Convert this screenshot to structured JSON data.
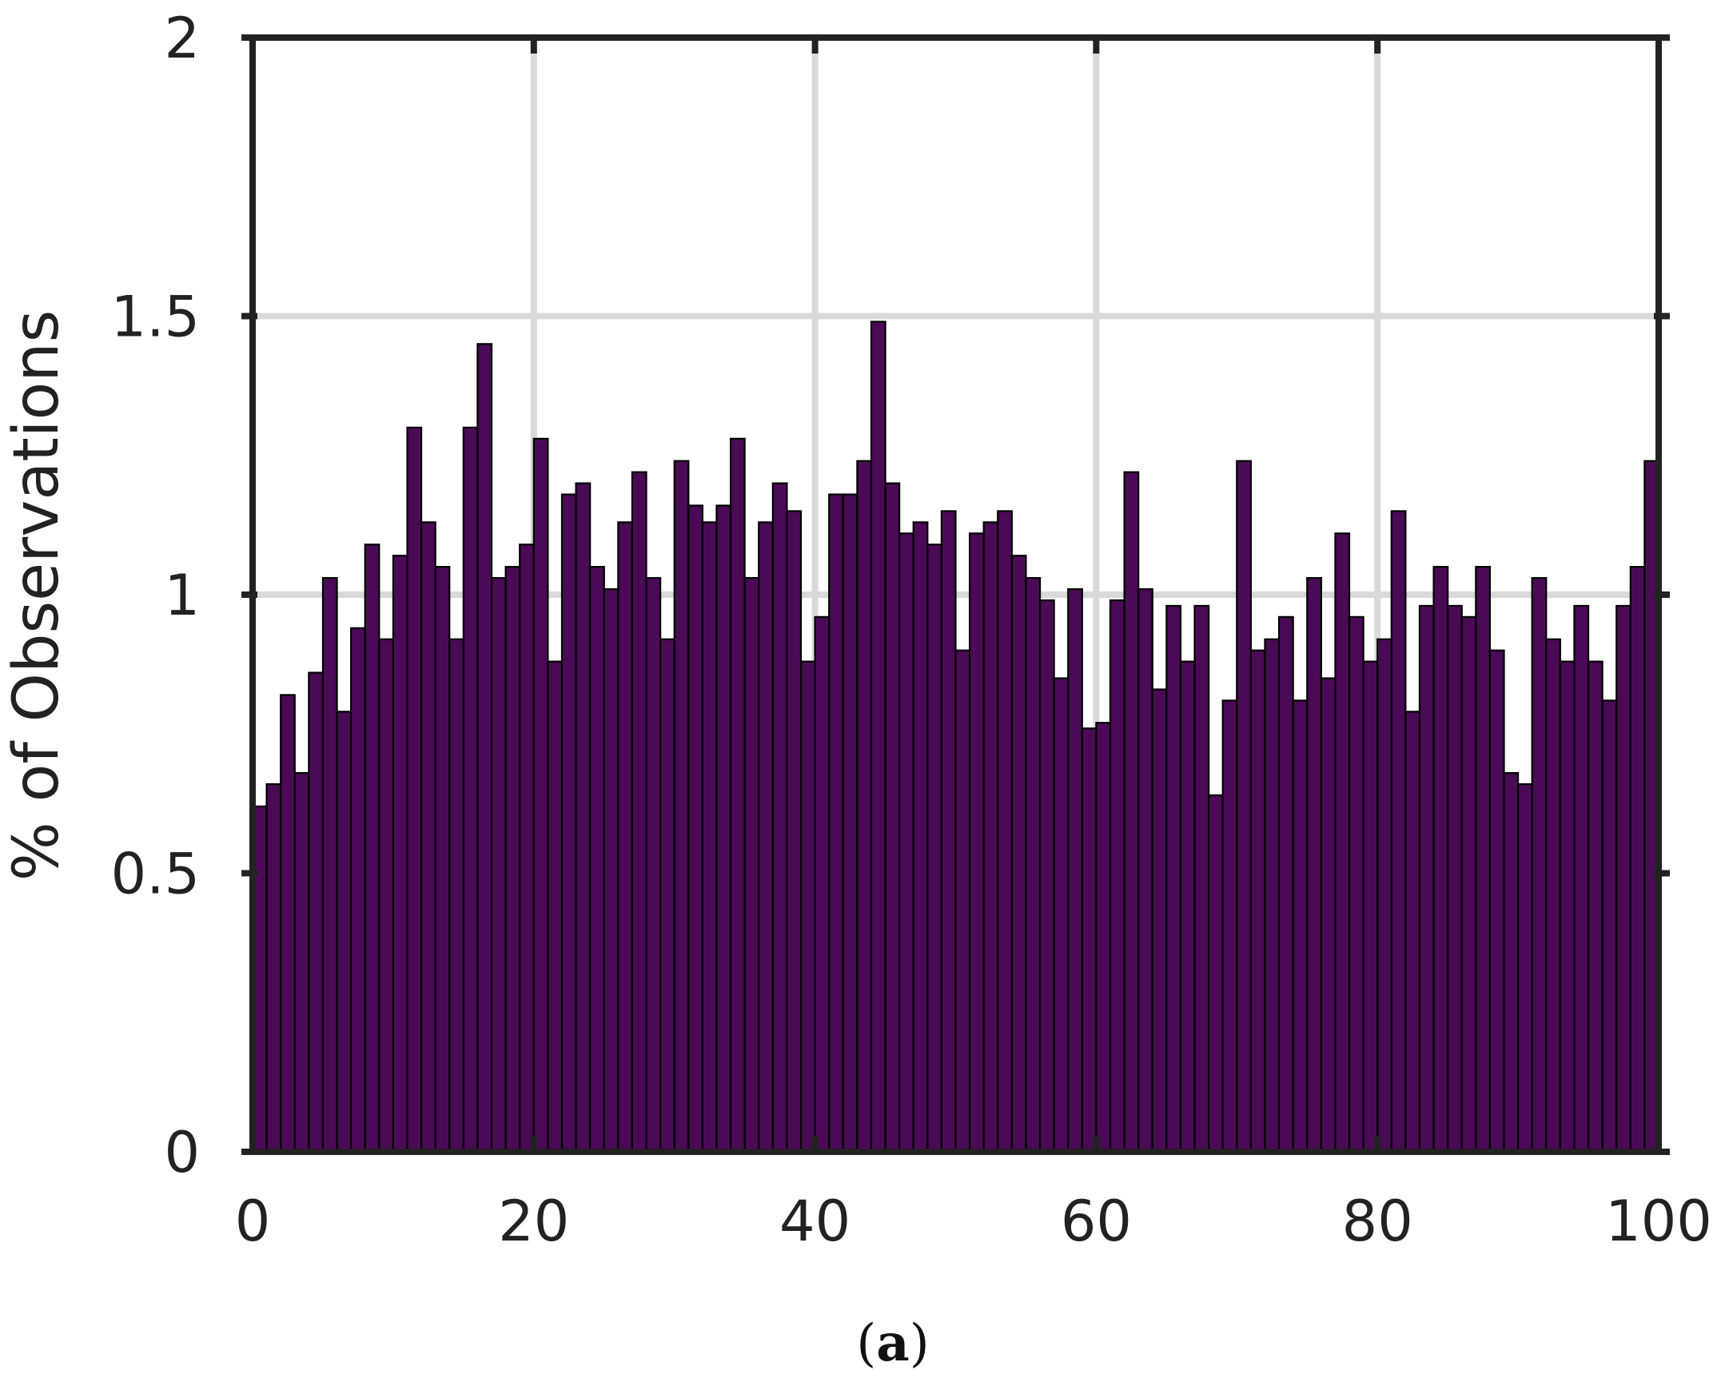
{
  "chart_data": {
    "type": "bar",
    "ylabel": "% of Observations",
    "caption": {
      "open": "(",
      "letter": "a",
      "close": ")"
    },
    "xlim": [
      0,
      100
    ],
    "ylim": [
      0,
      2
    ],
    "x_ticks": [
      "0",
      "20",
      "40",
      "60",
      "80",
      "100"
    ],
    "y_ticks": [
      "0",
      "0.5",
      "1",
      "1.5",
      "2"
    ],
    "grid": true,
    "bar_color": "#4a0a55",
    "bar_edge_color": "#000000",
    "grid_color": "#d9d9d9",
    "axis_color": "#222222",
    "values": [
      0.62,
      0.66,
      0.82,
      0.68,
      0.86,
      1.03,
      0.79,
      0.94,
      1.09,
      0.92,
      1.07,
      1.3,
      1.13,
      1.05,
      0.92,
      1.3,
      1.45,
      1.03,
      1.05,
      1.09,
      1.28,
      0.88,
      1.18,
      1.2,
      1.05,
      1.01,
      1.13,
      1.22,
      1.03,
      0.92,
      1.24,
      1.16,
      1.13,
      1.16,
      1.28,
      1.03,
      1.13,
      1.2,
      1.15,
      0.88,
      0.96,
      1.18,
      1.18,
      1.24,
      1.49,
      1.2,
      1.11,
      1.13,
      1.09,
      1.15,
      0.9,
      1.11,
      1.13,
      1.15,
      1.07,
      1.03,
      0.99,
      0.85,
      1.01,
      0.76,
      0.77,
      0.99,
      1.22,
      1.01,
      0.83,
      0.98,
      0.88,
      0.98,
      0.64,
      0.81,
      1.24,
      0.9,
      0.92,
      0.96,
      0.81,
      1.03,
      0.85,
      1.11,
      0.96,
      0.88,
      0.92,
      1.15,
      0.79,
      0.98,
      1.05,
      0.98,
      0.96,
      1.05,
      0.9,
      0.68,
      0.66,
      1.03,
      0.92,
      0.88,
      0.98,
      0.88,
      0.81,
      0.98,
      1.05,
      1.24
    ]
  }
}
